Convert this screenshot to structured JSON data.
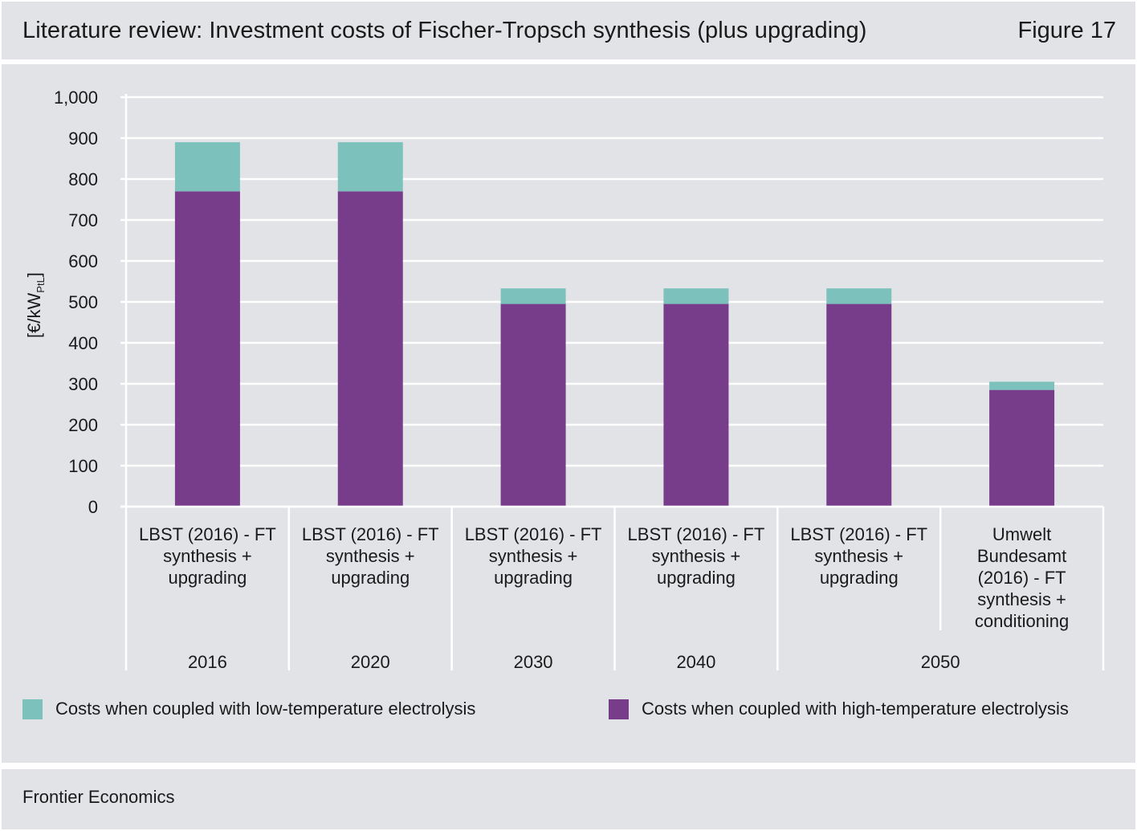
{
  "header": {
    "title": "Literature review: Investment costs of Fischer-Tropsch synthesis (plus upgrading)",
    "figure_label": "Figure 17"
  },
  "footer": {
    "source": "Frontier Economics"
  },
  "colors": {
    "low_temp": "#7dc1bd",
    "high_temp": "#783d8a",
    "panel_bg": "#e2e3e7",
    "grid": "#ffffff"
  },
  "chart_data": {
    "type": "bar",
    "stacked": true,
    "ylabel_main": "[€/kW",
    "ylabel_sub": "PtL",
    "ylabel_end": "]",
    "ylim": [
      0,
      1000
    ],
    "yticks": [
      "0",
      "100",
      "200",
      "300",
      "400",
      "500",
      "600",
      "700",
      "800",
      "900",
      "1,000"
    ],
    "ytick_values": [
      0,
      100,
      200,
      300,
      400,
      500,
      600,
      700,
      800,
      900,
      1000
    ],
    "grid": true,
    "categories": [
      [
        "LBST (2016) - FT",
        "synthesis +",
        "upgrading"
      ],
      [
        "LBST (2016) - FT",
        "synthesis +",
        "upgrading"
      ],
      [
        "LBST (2016) - FT",
        "synthesis +",
        "upgrading"
      ],
      [
        "LBST (2016) - FT",
        "synthesis +",
        "upgrading"
      ],
      [
        "LBST (2016) - FT",
        "synthesis +",
        "upgrading"
      ],
      [
        "Umwelt",
        "Bundesamt",
        "(2016) - FT",
        "synthesis +",
        "conditioning"
      ]
    ],
    "groups": [
      {
        "label": "2016",
        "span": 1
      },
      {
        "label": "2020",
        "span": 1
      },
      {
        "label": "2030",
        "span": 1
      },
      {
        "label": "2040",
        "span": 1
      },
      {
        "label": "2050",
        "span": 2
      }
    ],
    "series": [
      {
        "name": "Costs when coupled with high-temperature electrolysis",
        "values": [
          770,
          770,
          495,
          495,
          495,
          285
        ]
      },
      {
        "name": "Costs when coupled with low-temperature electrolysis",
        "values": [
          120,
          120,
          38,
          38,
          38,
          20
        ]
      }
    ],
    "legend_position": "bottom"
  }
}
